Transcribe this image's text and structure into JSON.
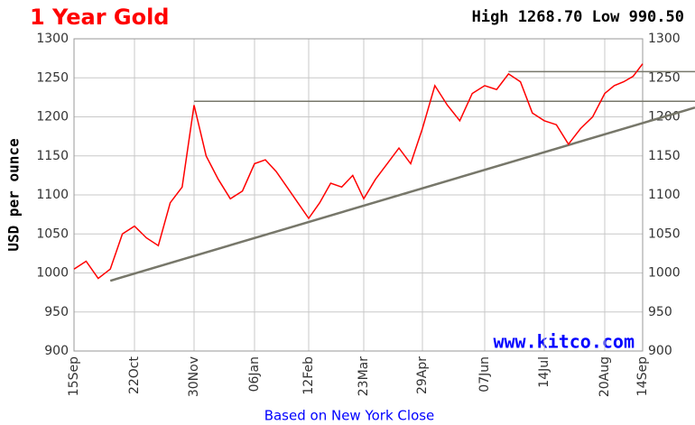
{
  "chart_data": {
    "type": "line",
    "title": "1 Year Gold",
    "subtitle": "High 1268.70 Low 990.50",
    "annotation": "www.kitco.com",
    "x_label": "Based on New York Close",
    "y_label": "USD per ounce",
    "color": "#ff0000",
    "categories": [
      "15Sep",
      null,
      null,
      null,
      null,
      "22Oct",
      null,
      null,
      null,
      null,
      "30Nov",
      null,
      null,
      null,
      null,
      "06Jan",
      null,
      null,
      null,
      null,
      "12Feb",
      null,
      null,
      null,
      null,
      "23Mar",
      null,
      null,
      null,
      null,
      "29Apr",
      null,
      null,
      null,
      null,
      "07Jun",
      null,
      null,
      null,
      null,
      "14Jul",
      null,
      null,
      null,
      null,
      "20Aug",
      null,
      null,
      null,
      "14Sep"
    ],
    "values": [
      1005,
      1015,
      993,
      1005,
      1050,
      1060,
      1045,
      1035,
      1090,
      1110,
      1215,
      1150,
      1120,
      1095,
      1105,
      1140,
      1145,
      1130,
      1110,
      1090,
      1070,
      1090,
      1115,
      1110,
      1125,
      1095,
      1120,
      1140,
      1160,
      1140,
      1185,
      1240,
      1215,
      1195,
      1230,
      1240,
      1235,
      1255,
      1245,
      1205,
      1195,
      1190,
      1165,
      1185,
      1200,
      1230,
      1240,
      1245,
      1252,
      1268
    ],
    "trendline": {
      "x": [
        3,
        49
      ],
      "values": [
        990,
        1192
      ]
    },
    "hlines": [
      {
        "x": [
          10,
          49
        ],
        "value": 1220
      },
      {
        "x": [
          37,
          49
        ],
        "value": 1258
      }
    ],
    "ylim": [
      900,
      1300
    ],
    "yticks": [
      900,
      950,
      1000,
      1050,
      1100,
      1150,
      1200,
      1250,
      1300
    ],
    "grid": true
  }
}
